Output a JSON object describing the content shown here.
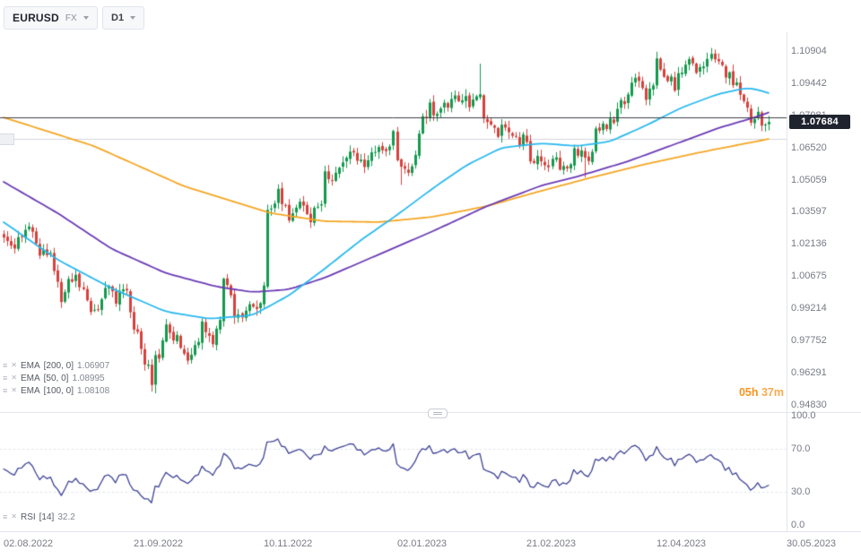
{
  "header": {
    "symbol": "EURUSD",
    "market": "FX",
    "timeframe": "D1"
  },
  "price_badge": "1.07684",
  "countdown": {
    "hours": "05h",
    "minutes": "37m"
  },
  "chart_data": {
    "type": "candlestick",
    "title": "EURUSD D1",
    "up_color": "#129a4d",
    "down_color": "#d6413c",
    "x_axis": {
      "labels": [
        "02.08.2022",
        "21.09.2022",
        "10.11.2022",
        "02.01.2023",
        "21.02.2023",
        "12.04.2023",
        "30.05.2023"
      ],
      "label_days": [
        0,
        36,
        72,
        109,
        145,
        181,
        217
      ],
      "total_days": 218
    },
    "y_axis": {
      "ticks": [
        "1.10904",
        "1.09442",
        "1.07981",
        "1.06520",
        "1.05059",
        "1.03597",
        "1.02136",
        "1.00675",
        "0.99214",
        "0.97752",
        "0.96291",
        "0.94830"
      ]
    },
    "last_close": 1.07684,
    "levels": [
      {
        "price": 1.079,
        "color": "#3c3f49"
      },
      {
        "price": 1.069,
        "color": "#d0d4dc"
      }
    ],
    "close_anchors": [
      [
        0,
        1.0265
      ],
      [
        3,
        1.0205
      ],
      [
        6,
        1.0298
      ],
      [
        8,
        1.025
      ],
      [
        10,
        1.0175
      ],
      [
        13,
        1.0165
      ],
      [
        16,
        0.9966
      ],
      [
        18,
        1.003
      ],
      [
        20,
        1.0045
      ],
      [
        23,
        0.995
      ],
      [
        26,
        0.9903
      ],
      [
        29,
        1.004
      ],
      [
        31,
        0.997
      ],
      [
        34,
        1.0016
      ],
      [
        36,
        0.984
      ],
      [
        39,
        0.969
      ],
      [
        41,
        0.9594
      ],
      [
        42,
        0.97
      ],
      [
        43,
        0.967
      ],
      [
        45,
        0.983
      ],
      [
        48,
        0.979
      ],
      [
        50,
        0.9705
      ],
      [
        52,
        0.97
      ],
      [
        55,
        0.984
      ],
      [
        58,
        0.978
      ],
      [
        60,
        0.987
      ],
      [
        61,
        1.008
      ],
      [
        63,
        0.996
      ],
      [
        64,
        0.988
      ],
      [
        66,
        0.99
      ],
      [
        68,
        0.996
      ],
      [
        70,
        0.992
      ],
      [
        72,
        1.001
      ],
      [
        73,
        1.035
      ],
      [
        76,
        1.044
      ],
      [
        79,
        1.0325
      ],
      [
        81,
        1.039
      ],
      [
        83,
        1.041
      ],
      [
        85,
        1.034
      ],
      [
        88,
        1.041
      ],
      [
        89,
        1.054
      ],
      [
        91,
        1.05
      ],
      [
        93,
        1.056
      ],
      [
        96,
        1.063
      ],
      [
        98,
        1.062
      ],
      [
        100,
        1.0585
      ],
      [
        102,
        1.0605
      ],
      [
        105,
        1.064
      ],
      [
        108,
        1.07
      ],
      [
        110,
        1.0545
      ],
      [
        112,
        1.052
      ],
      [
        114,
        1.064
      ],
      [
        115,
        1.0735
      ],
      [
        118,
        1.083
      ],
      [
        120,
        1.08
      ],
      [
        122,
        1.083
      ],
      [
        125,
        1.0885
      ],
      [
        127,
        1.087
      ],
      [
        129,
        1.085
      ],
      [
        132,
        1.091
      ],
      [
        133,
        1.0795
      ],
      [
        135,
        1.073
      ],
      [
        136,
        1.0715
      ],
      [
        138,
        1.074
      ],
      [
        139,
        1.072
      ],
      [
        141,
        1.069
      ],
      [
        143,
        1.0665
      ],
      [
        144,
        1.0685
      ],
      [
        146,
        1.061
      ],
      [
        147,
        1.0595
      ],
      [
        150,
        1.0578
      ],
      [
        152,
        1.0598
      ],
      [
        154,
        1.056
      ],
      [
        155,
        1.0548
      ],
      [
        157,
        1.058
      ],
      [
        158,
        1.064
      ],
      [
        160,
        1.0615
      ],
      [
        161,
        1.0577
      ],
      [
        163,
        1.066
      ],
      [
        164,
        1.072
      ],
      [
        166,
        1.0765
      ],
      [
        168,
        1.076
      ],
      [
        170,
        1.081
      ],
      [
        171,
        1.084
      ],
      [
        173,
        1.0905
      ],
      [
        175,
        1.0955
      ],
      [
        177,
        1.0905
      ],
      [
        178,
        1.086
      ],
      [
        180,
        1.092
      ],
      [
        181,
        1.1045
      ],
      [
        183,
        1.099
      ],
      [
        184,
        1.0975
      ],
      [
        186,
        1.093
      ],
      [
        187,
        1.0985
      ],
      [
        189,
        1.101
      ],
      [
        190,
        1.104
      ],
      [
        192,
        1.1005
      ],
      [
        193,
        1.1019
      ],
      [
        195,
        1.1035
      ],
      [
        196,
        1.106
      ],
      [
        198,
        1.1018
      ],
      [
        200,
        1.1
      ],
      [
        201,
        1.098
      ],
      [
        203,
        1.092
      ],
      [
        204,
        1.0875
      ],
      [
        206,
        1.083
      ],
      [
        207,
        1.077
      ],
      [
        209,
        1.081
      ],
      [
        211,
        1.075
      ],
      [
        212,
        1.07684
      ]
    ],
    "wick_overrides": {
      "42": {
        "low": 0.9535
      },
      "110": {
        "low": 1.0482
      },
      "132": {
        "high": 1.1033
      },
      "161": {
        "low": 1.0516
      },
      "181": {
        "high": 1.1068
      },
      "196": {
        "high": 1.1091
      }
    },
    "ema_series": [
      {
        "label": "EMA",
        "params": "[200, 0]",
        "value": "1.06907",
        "color": "#f5a623",
        "anchors": [
          [
            0,
            1.0789
          ],
          [
            25,
            1.0659
          ],
          [
            50,
            1.0476
          ],
          [
            74,
            1.0354
          ],
          [
            89,
            1.0317
          ],
          [
            104,
            1.0313
          ],
          [
            119,
            1.0337
          ],
          [
            134,
            1.0386
          ],
          [
            149,
            1.0455
          ],
          [
            163,
            1.0516
          ],
          [
            178,
            1.0577
          ],
          [
            193,
            1.063
          ],
          [
            212,
            1.06907
          ]
        ]
      },
      {
        "label": "EMA",
        "params": "[50, 0]",
        "value": "1.08995",
        "color": "#29b8ef",
        "anchors": [
          [
            0,
            1.0313
          ],
          [
            15,
            1.0142
          ],
          [
            30,
            1.0012
          ],
          [
            45,
            0.9906
          ],
          [
            57,
            0.9874
          ],
          [
            69,
            0.989
          ],
          [
            79,
            0.9979
          ],
          [
            89,
            1.0101
          ],
          [
            99,
            1.0231
          ],
          [
            109,
            1.0345
          ],
          [
            119,
            1.0467
          ],
          [
            128,
            1.0569
          ],
          [
            138,
            1.0651
          ],
          [
            149,
            1.0671
          ],
          [
            159,
            1.0659
          ],
          [
            168,
            1.0679
          ],
          [
            178,
            1.0752
          ],
          [
            188,
            1.0834
          ],
          [
            198,
            1.0895
          ],
          [
            206,
            1.0923
          ],
          [
            209,
            1.0915
          ],
          [
            212,
            1.08995
          ]
        ]
      },
      {
        "label": "EMA",
        "params": "[100, 0]",
        "value": "1.08108",
        "color": "#6a3bb5",
        "anchors": [
          [
            0,
            1.0496
          ],
          [
            15,
            1.0354
          ],
          [
            30,
            1.0191
          ],
          [
            45,
            1.0081
          ],
          [
            59,
            1.002
          ],
          [
            69,
            0.9995
          ],
          [
            79,
            1.0007
          ],
          [
            89,
            1.006
          ],
          [
            104,
            1.0166
          ],
          [
            119,
            1.0272
          ],
          [
            134,
            1.0386
          ],
          [
            149,
            1.0479
          ],
          [
            159,
            1.052
          ],
          [
            173,
            1.0589
          ],
          [
            188,
            1.0679
          ],
          [
            198,
            1.074
          ],
          [
            209,
            1.0793
          ],
          [
            212,
            1.08108
          ]
        ]
      }
    ],
    "rsi_panel": {
      "label": "RSI",
      "params": "[14]",
      "value": "32.2",
      "period": 14,
      "upper": 70,
      "lower": 30,
      "color": "#3d4296",
      "scale_labels": [
        "100.0",
        "70.0",
        "30.0",
        "0.0"
      ]
    }
  }
}
